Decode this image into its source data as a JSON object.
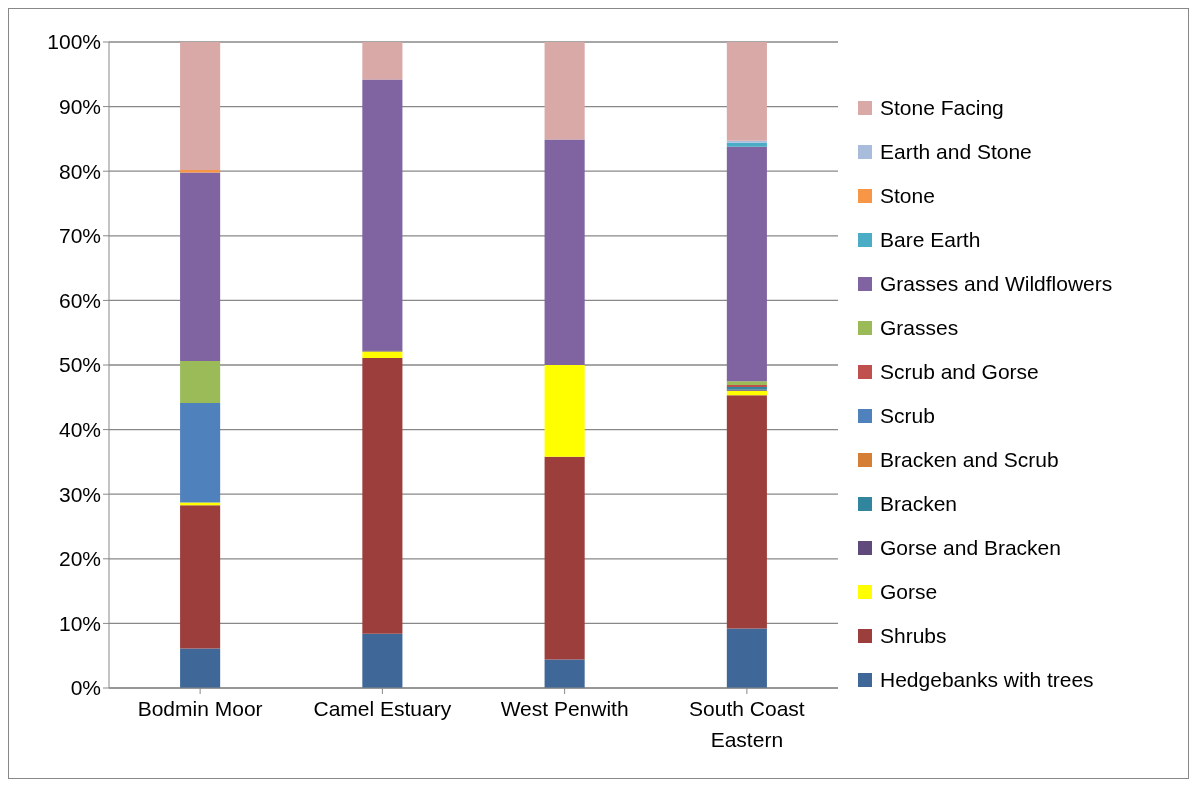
{
  "chart_data": {
    "type": "bar",
    "stacked": true,
    "categories": [
      "Bodmin Moor",
      "Camel Estuary",
      "West Penwith",
      "South Coast Eastern"
    ],
    "series": [
      {
        "name": "Hedgebanks with trees",
        "color": "#3f6899",
        "values": [
          6.1,
          8.4,
          4.4,
          9.2
        ]
      },
      {
        "name": "Shrubs",
        "color": "#9c3f3c",
        "values": [
          22.2,
          42.7,
          31.4,
          36.1
        ]
      },
      {
        "name": "Gorse",
        "color": "#ffff00",
        "values": [
          0.4,
          1.0,
          14.2,
          0.7
        ]
      },
      {
        "name": "Gorse and Bracken",
        "color": "#604a7b",
        "values": [
          0,
          0.2,
          0,
          0.2
        ]
      },
      {
        "name": "Bracken",
        "color": "#31859c",
        "values": [
          0,
          0,
          0,
          0.4
        ]
      },
      {
        "name": "Bracken and Scrub",
        "color": "#d57e35",
        "values": [
          0,
          0,
          0,
          0
        ]
      },
      {
        "name": "Scrub",
        "color": "#4f81bd",
        "values": [
          15.4,
          0,
          0,
          0
        ]
      },
      {
        "name": "Scrub and Gorse",
        "color": "#c0504d",
        "values": [
          0,
          0,
          0,
          0.3
        ]
      },
      {
        "name": "Grasses",
        "color": "#9bbb59",
        "values": [
          6.5,
          0,
          0,
          0.6
        ]
      },
      {
        "name": "Grasses and Wildflowers",
        "color": "#8064a2",
        "values": [
          29.2,
          41.9,
          34.9,
          36.3
        ]
      },
      {
        "name": "Bare Earth",
        "color": "#4bacc6",
        "values": [
          0,
          0,
          0,
          0.6
        ]
      },
      {
        "name": "Stone",
        "color": "#f79646",
        "values": [
          0.4,
          0,
          0,
          0
        ]
      },
      {
        "name": "Earth and Stone",
        "color": "#a9bcdc",
        "values": [
          0,
          0,
          0,
          0.3
        ]
      },
      {
        "name": "Stone Facing",
        "color": "#d9a9a8",
        "values": [
          19.8,
          5.8,
          15.1,
          15.3
        ]
      }
    ],
    "ylim": [
      0,
      100
    ],
    "yticks": [
      {
        "value": 0,
        "label": "0%"
      },
      {
        "value": 10,
        "label": "10%"
      },
      {
        "value": 20,
        "label": "20%"
      },
      {
        "value": 30,
        "label": "30%"
      },
      {
        "value": 40,
        "label": "40%"
      },
      {
        "value": 50,
        "label": "50%"
      },
      {
        "value": 60,
        "label": "60%"
      },
      {
        "value": 70,
        "label": "70%"
      },
      {
        "value": 80,
        "label": "80%"
      },
      {
        "value": 90,
        "label": "90%"
      },
      {
        "value": 100,
        "label": "100%"
      }
    ],
    "grid": "y",
    "legend": "right"
  }
}
